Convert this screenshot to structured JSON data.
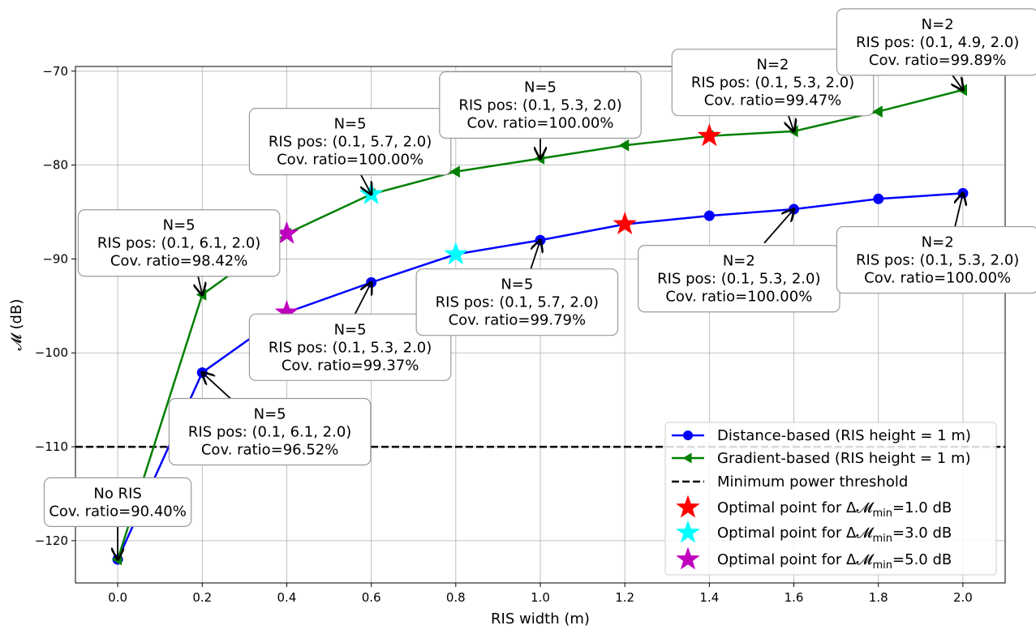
{
  "chart_data": {
    "type": "line",
    "xlabel": "RIS width (m)",
    "ylabel": "𝓜 (dB)",
    "xlim": [
      -0.1,
      2.1
    ],
    "ylim": [
      -124.5,
      -69.5
    ],
    "x_ticks": [
      0.0,
      0.2,
      0.4,
      0.6,
      0.8,
      1.0,
      1.2,
      1.4,
      1.6,
      1.8,
      2.0
    ],
    "x_tick_labels": [
      "0.0",
      "0.2",
      "0.4",
      "0.6",
      "0.8",
      "1.0",
      "1.2",
      "1.4",
      "1.6",
      "1.8",
      "2.0"
    ],
    "y_ticks": [
      -120,
      -110,
      -100,
      -90,
      -80,
      -70
    ],
    "y_tick_labels": [
      "−120",
      "−110",
      "−100",
      "−90",
      "−80",
      "−70"
    ],
    "grid": true,
    "legend_position": "bottom-right",
    "series": [
      {
        "name": "Distance-based (RIS height = 1 m)",
        "color": "#0000ff",
        "marker": "circle",
        "x": [
          0.0,
          0.2,
          0.4,
          0.6,
          0.8,
          1.0,
          1.2,
          1.4,
          1.6,
          1.8,
          2.0
        ],
        "y": [
          -122.0,
          -102.1,
          -95.7,
          -92.5,
          -89.5,
          -88.0,
          -86.3,
          -85.4,
          -84.7,
          -83.6,
          -83.0
        ]
      },
      {
        "name": "Gradient-based (RIS height = 1 m)",
        "color": "#008000",
        "marker": "triangle-left",
        "x": [
          0.0,
          0.2,
          0.4,
          0.6,
          0.8,
          1.0,
          1.2,
          1.4,
          1.6,
          1.8,
          2.0
        ],
        "y": [
          -122.0,
          -93.8,
          -87.3,
          -83.1,
          -80.7,
          -79.3,
          -77.9,
          -76.9,
          -76.4,
          -74.3,
          -72.0
        ]
      }
    ],
    "threshold": {
      "name": "Minimum power threshold",
      "y": -110,
      "color": "#000000",
      "style": "dashed"
    },
    "optimal_points": [
      {
        "label_pre": "Optimal point for Δ𝓜",
        "label_sub": "min",
        "label_post": "=1.0 dB",
        "color": "#ff0000",
        "points": [
          [
            1.2,
            -86.3
          ],
          [
            1.4,
            -76.9
          ]
        ]
      },
      {
        "label_pre": "Optimal point for Δ𝓜",
        "label_sub": "min",
        "label_post": "=3.0 dB",
        "color": "#00ffff",
        "points": [
          [
            0.8,
            -89.5
          ],
          [
            0.6,
            -83.1
          ]
        ]
      },
      {
        "label_pre": "Optimal point for Δ𝓜",
        "label_sub": "min",
        "label_post": "=5.0 dB",
        "color": "#bf00bf",
        "points": [
          [
            0.4,
            -95.7
          ],
          [
            0.4,
            -87.3
          ]
        ]
      }
    ],
    "annotations": [
      {
        "lines": [
          "No RIS",
          "Cov. ratio=90.40%"
        ],
        "target": [
          0.0,
          -122.0
        ],
        "box_center": [
          0.0,
          -115.9
        ],
        "arrow_from": [
          0.0,
          -118.5
        ]
      },
      {
        "lines": [
          "N=5",
          "RIS pos: (0.1, 6.1, 2.0)",
          "Cov. ratio=96.52%"
        ],
        "target": [
          0.2,
          -102.1
        ],
        "box_center": [
          0.36,
          -108.4
        ],
        "arrow_from": [
          0.28,
          -105.4
        ]
      },
      {
        "lines": [
          "N=5",
          "RIS pos: (0.1, 6.1, 2.0)",
          "Cov. ratio=98.42%"
        ],
        "target": [
          0.2,
          -93.8
        ],
        "box_center": [
          0.145,
          -88.3
        ],
        "arrow_from": [
          0.19,
          -91.8
        ]
      },
      {
        "lines": [
          "N=5",
          "RIS pos: (0.1, 5.3, 2.0)",
          "Cov. ratio=99.37%"
        ],
        "target": [
          0.6,
          -92.5
        ],
        "box_center": [
          0.55,
          -99.4
        ],
        "arrow_from": [
          0.56,
          -96.0
        ]
      },
      {
        "lines": [
          "N=5",
          "RIS pos: (0.1, 5.7, 2.0)",
          "Cov. ratio=100.00%"
        ],
        "target": [
          0.6,
          -83.1
        ],
        "box_center": [
          0.55,
          -77.5
        ],
        "arrow_from": [
          0.575,
          -81.0
        ]
      },
      {
        "lines": [
          "N=5",
          "RIS pos: (0.1, 5.7, 2.0)",
          "Cov. ratio=99.79%"
        ],
        "target": [
          1.0,
          -88.0
        ],
        "box_center": [
          0.945,
          -94.6
        ],
        "arrow_from": [
          0.975,
          -91.4
        ]
      },
      {
        "lines": [
          "N=5",
          "RIS pos: (0.1, 5.3, 2.0)",
          "Cov. ratio=100.00%"
        ],
        "target": [
          1.0,
          -79.3
        ],
        "box_center": [
          1.0,
          -73.6
        ],
        "arrow_from": [
          1.0,
          -77.2
        ]
      },
      {
        "lines": [
          "N=2",
          "RIS pos: (0.1, 5.3, 2.0)",
          "Cov. ratio=100.00%"
        ],
        "target": [
          1.6,
          -84.7
        ],
        "box_center": [
          1.47,
          -92.1
        ],
        "arrow_from": [
          1.53,
          -88.3
        ]
      },
      {
        "lines": [
          "N=2",
          "RIS pos: (0.1, 5.3, 2.0)",
          "Cov. ratio=100.00%"
        ],
        "target": [
          2.0,
          -83.0
        ],
        "box_center": [
          1.94,
          -90.1
        ],
        "arrow_from": [
          1.98,
          -86.8
        ]
      },
      {
        "lines": [
          "N=2",
          "RIS pos: (0.1, 5.3, 2.0)",
          "Cov. ratio=99.47%"
        ],
        "target": [
          1.6,
          -76.4
        ],
        "box_center": [
          1.55,
          -71.2
        ],
        "arrow_from": [
          1.58,
          -73.8
        ]
      },
      {
        "lines": [
          "N=2",
          "RIS pos: (0.1, 4.9, 2.0)",
          "Cov. ratio=99.89%"
        ],
        "target": [
          2.0,
          -72.0
        ],
        "box_center": [
          1.94,
          -66.9
        ],
        "arrow_from": [
          1.97,
          -70.1
        ]
      }
    ]
  }
}
